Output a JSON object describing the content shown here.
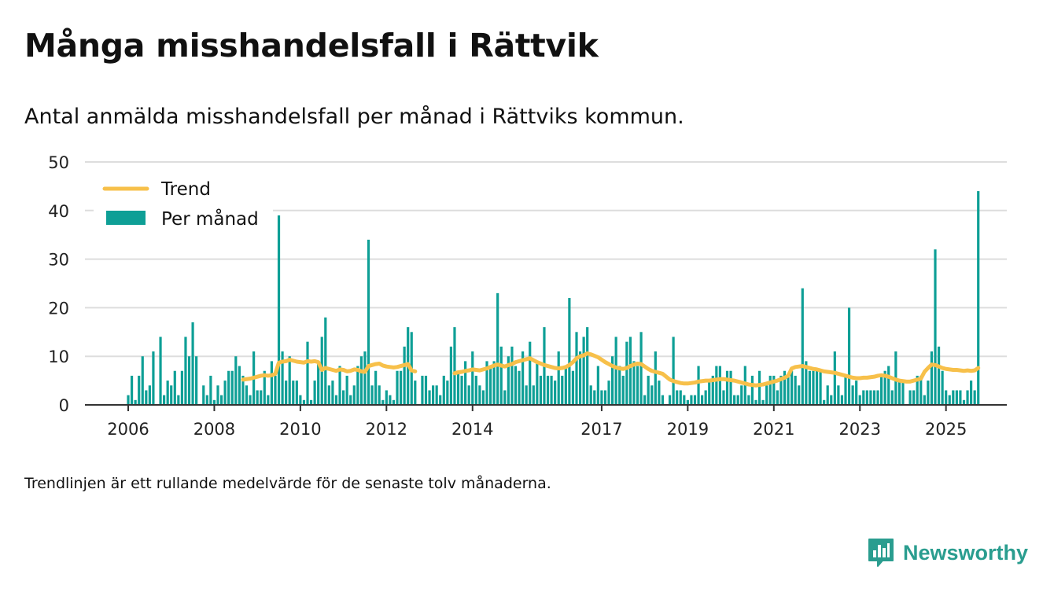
{
  "title": "Många misshandelsfall i Rättvik",
  "subtitle": "Antal anmälda misshandelsfall per månad i Rättviks kommun.",
  "footnote": "Trendlinjen är ett rullande medelvärde för de senaste tolv månaderna.",
  "brand": {
    "name": "Newsworthy",
    "logo_icon": "newsworthy-chart-bubble-icon"
  },
  "colors": {
    "bars": "#0e9f96",
    "trend": "#f7c04a",
    "grid": "#dddddd",
    "axis": "#333333",
    "brand": "#2a9d8f"
  },
  "chart_data": {
    "type": "bar",
    "ylim": [
      0,
      50
    ],
    "yticks": [
      0,
      10,
      20,
      30,
      40,
      50
    ],
    "xticks": [
      "2006",
      "2008",
      "2010",
      "2012",
      "2014",
      "2017",
      "2019",
      "2021",
      "2023",
      "2025"
    ],
    "grid": true,
    "legend_position": "top-left",
    "months": [
      "2006-01",
      "2006-02",
      "2006-03",
      "2006-04",
      "2006-05",
      "2006-06",
      "2006-07",
      "2006-08",
      "2006-09",
      "2006-10",
      "2006-11",
      "2006-12",
      "2007-01",
      "2007-02",
      "2007-03",
      "2007-04",
      "2007-05",
      "2007-06",
      "2007-07",
      "2007-08",
      "2007-09",
      "2007-10",
      "2007-11",
      "2007-12",
      "2008-01",
      "2008-02",
      "2008-03",
      "2008-04",
      "2008-05",
      "2008-06",
      "2008-07",
      "2008-08",
      "2008-09",
      "2008-10",
      "2008-11",
      "2008-12",
      "2009-01",
      "2009-02",
      "2009-03",
      "2009-04",
      "2009-05",
      "2009-06",
      "2009-07",
      "2009-08",
      "2009-09",
      "2009-10",
      "2009-11",
      "2009-12",
      "2010-01",
      "2010-02",
      "2010-03",
      "2010-04",
      "2010-05",
      "2010-06",
      "2010-07",
      "2010-08",
      "2010-09",
      "2010-10",
      "2010-11",
      "2010-12",
      "2011-01",
      "2011-02",
      "2011-03",
      "2011-04",
      "2011-05",
      "2011-06",
      "2011-07",
      "2011-08",
      "2011-09",
      "2011-10",
      "2011-11",
      "2011-12",
      "2012-01",
      "2012-02",
      "2012-03",
      "2012-04",
      "2012-05",
      "2012-06",
      "2012-07",
      "2012-08",
      "2012-09",
      "2012-10",
      "2012-11",
      "2012-12",
      "2013-01",
      "2013-02",
      "2013-03",
      "2013-04",
      "2013-05",
      "2013-06",
      "2013-07",
      "2013-08",
      "2013-09",
      "2013-10",
      "2013-11",
      "2013-12",
      "2014-01",
      "2014-02",
      "2014-03",
      "2014-04",
      "2014-05",
      "2014-06",
      "2014-07",
      "2014-08",
      "2014-09",
      "2014-10",
      "2014-11",
      "2014-12",
      "2015-01",
      "2015-02",
      "2015-03",
      "2015-04",
      "2015-05",
      "2015-06",
      "2015-07",
      "2015-08",
      "2015-09",
      "2015-10",
      "2015-11",
      "2015-12",
      "2016-01",
      "2016-02",
      "2016-03",
      "2016-04",
      "2016-05",
      "2016-06",
      "2016-07",
      "2016-08",
      "2016-09",
      "2016-10",
      "2016-11",
      "2016-12",
      "2017-01",
      "2017-02",
      "2017-03",
      "2017-04",
      "2017-05",
      "2017-06",
      "2017-07",
      "2017-08",
      "2017-09",
      "2017-10",
      "2017-11",
      "2017-12",
      "2018-01",
      "2018-02",
      "2018-03",
      "2018-04",
      "2018-05",
      "2018-06",
      "2018-07",
      "2018-08",
      "2018-09",
      "2018-10",
      "2018-11",
      "2018-12",
      "2019-01",
      "2019-02",
      "2019-03",
      "2019-04",
      "2019-05",
      "2019-06",
      "2019-07",
      "2019-08",
      "2019-09",
      "2019-10",
      "2019-11",
      "2019-12",
      "2020-01",
      "2020-02",
      "2020-03",
      "2020-04",
      "2020-05",
      "2020-06",
      "2020-07",
      "2020-08",
      "2020-09",
      "2020-10",
      "2020-11",
      "2020-12",
      "2021-01",
      "2021-02",
      "2021-03",
      "2021-04",
      "2021-05",
      "2021-06",
      "2021-07",
      "2021-08",
      "2021-09",
      "2021-10",
      "2021-11",
      "2021-12",
      "2022-01",
      "2022-02",
      "2022-03",
      "2022-04",
      "2022-05",
      "2022-06",
      "2022-07",
      "2022-08",
      "2022-09",
      "2022-10",
      "2022-11",
      "2022-12",
      "2023-01",
      "2023-02",
      "2023-03",
      "2023-04",
      "2023-05",
      "2023-06",
      "2023-07",
      "2023-08",
      "2023-09",
      "2023-10",
      "2023-11",
      "2023-12",
      "2024-01",
      "2024-02",
      "2024-03",
      "2024-04",
      "2024-05",
      "2024-06",
      "2024-07",
      "2024-08",
      "2024-09",
      "2024-10",
      "2024-11",
      "2024-12",
      "2025-01",
      "2025-02",
      "2025-03",
      "2025-04",
      "2025-05",
      "2025-06",
      "2025-07",
      "2025-08",
      "2025-09",
      "2025-10",
      "2025-11",
      "2025-12"
    ],
    "series": [
      {
        "name": "Per månad",
        "values": [
          2,
          6,
          1,
          6,
          10,
          3,
          4,
          11,
          0,
          14,
          2,
          5,
          4,
          7,
          2,
          7,
          14,
          10,
          17,
          10,
          0,
          4,
          2,
          6,
          1,
          4,
          2,
          5,
          7,
          7,
          10,
          8,
          6,
          4,
          2,
          11,
          3,
          3,
          7,
          2,
          9,
          6,
          39,
          11,
          5,
          10,
          5,
          5,
          2,
          1,
          13,
          1,
          5,
          9,
          14,
          18,
          4,
          5,
          2,
          8,
          3,
          6,
          2,
          4,
          8,
          10,
          11,
          34,
          4,
          7,
          4,
          1,
          3,
          2,
          1,
          7,
          7,
          12,
          16,
          15,
          5,
          null,
          6,
          6,
          3,
          4,
          4,
          2,
          6,
          5,
          12,
          16,
          7,
          6,
          9,
          4,
          11,
          6,
          4,
          3,
          9,
          8,
          9,
          23,
          12,
          3,
          10,
          12,
          8,
          7,
          11,
          4,
          13,
          4,
          9,
          6,
          16,
          6,
          6,
          5,
          11,
          6,
          8,
          22,
          7,
          15,
          11,
          14,
          16,
          4,
          3,
          8,
          3,
          3,
          5,
          10,
          14,
          8,
          6,
          13,
          14,
          9,
          8,
          15,
          2,
          6,
          4,
          11,
          5,
          2,
          0,
          2,
          14,
          3,
          3,
          2,
          1,
          2,
          2,
          8,
          2,
          3,
          5,
          6,
          8,
          8,
          3,
          7,
          7,
          2,
          2,
          4,
          8,
          2,
          6,
          1,
          7,
          1,
          4,
          6,
          6,
          3,
          6,
          7,
          6,
          7,
          6,
          4,
          24,
          9,
          7,
          7,
          7,
          7,
          1,
          4,
          2,
          11,
          4,
          2,
          6,
          20,
          4,
          5,
          2,
          3,
          3,
          3,
          3,
          3,
          6,
          7,
          8,
          3,
          11,
          5,
          5,
          0,
          3,
          3,
          6,
          6,
          2,
          5,
          11,
          32,
          12,
          7,
          3,
          2,
          3,
          3,
          3,
          1,
          3,
          5,
          3,
          44,
          0,
          0
        ]
      },
      {
        "name": "Trend",
        "values": [
          null,
          null,
          null,
          null,
          null,
          null,
          null,
          null,
          null,
          null,
          null,
          null,
          null,
          null,
          null,
          null,
          null,
          null,
          null,
          null,
          null,
          null,
          null,
          null,
          null,
          null,
          null,
          null,
          null,
          null,
          null,
          null,
          5.2,
          5.3,
          5.4,
          5.6,
          5.8,
          6.0,
          6.1,
          6.0,
          6.1,
          6.4,
          8.7,
          8.9,
          9.0,
          9.3,
          9.1,
          8.9,
          8.8,
          8.7,
          9.0,
          8.9,
          9.0,
          8.8,
          7.2,
          7.6,
          7.4,
          7.2,
          7.0,
          7.3,
          7.2,
          6.9,
          7.0,
          7.3,
          7.2,
          6.9,
          6.8,
          8.0,
          8.2,
          8.4,
          8.5,
          8.1,
          7.9,
          7.8,
          7.7,
          7.8,
          8.0,
          8.2,
          8.4,
          7.1,
          6.9,
          null,
          null,
          null,
          null,
          null,
          null,
          null,
          null,
          null,
          null,
          6.5,
          6.7,
          6.8,
          7.0,
          7.1,
          7.3,
          7.2,
          7.1,
          7.3,
          7.5,
          7.8,
          8.1,
          8.3,
          8.1,
          7.9,
          8.2,
          8.4,
          8.8,
          9.0,
          9.2,
          9.4,
          9.6,
          9.2,
          8.8,
          8.5,
          8.2,
          8.0,
          7.8,
          7.6,
          7.5,
          7.6,
          7.8,
          8.2,
          8.8,
          9.6,
          10.0,
          10.2,
          10.6,
          10.4,
          10.1,
          9.8,
          9.3,
          8.8,
          8.4,
          8.0,
          7.7,
          7.5,
          7.4,
          7.6,
          8.0,
          8.3,
          8.5,
          8.4,
          7.9,
          7.4,
          7.0,
          6.8,
          6.6,
          6.4,
          5.8,
          5.2,
          4.9,
          4.7,
          4.5,
          4.4,
          4.4,
          4.5,
          4.6,
          4.8,
          4.9,
          5.0,
          5.0,
          5.1,
          5.2,
          5.3,
          5.3,
          5.2,
          5.1,
          5.0,
          4.8,
          4.6,
          4.4,
          4.2,
          4.1,
          4.0,
          4.1,
          4.2,
          4.4,
          4.6,
          4.8,
          5.0,
          5.3,
          5.6,
          6.0,
          7.5,
          7.8,
          7.9,
          8.0,
          7.8,
          7.6,
          7.4,
          7.3,
          7.1,
          6.9,
          6.8,
          6.7,
          6.6,
          6.4,
          6.2,
          6.0,
          5.8,
          5.6,
          5.5,
          5.5,
          5.6,
          5.6,
          5.7,
          5.8,
          6.0,
          6.1,
          6.0,
          5.8,
          5.5,
          5.2,
          5.0,
          4.9,
          4.8,
          4.8,
          5.0,
          5.2,
          5.4,
          6.8,
          7.6,
          8.3,
          8.2,
          7.9,
          7.6,
          7.4,
          7.3,
          7.2,
          7.2,
          7.1,
          7.0,
          7.1,
          7.0,
          7.1,
          7.6,
          null,
          null
        ]
      }
    ]
  }
}
